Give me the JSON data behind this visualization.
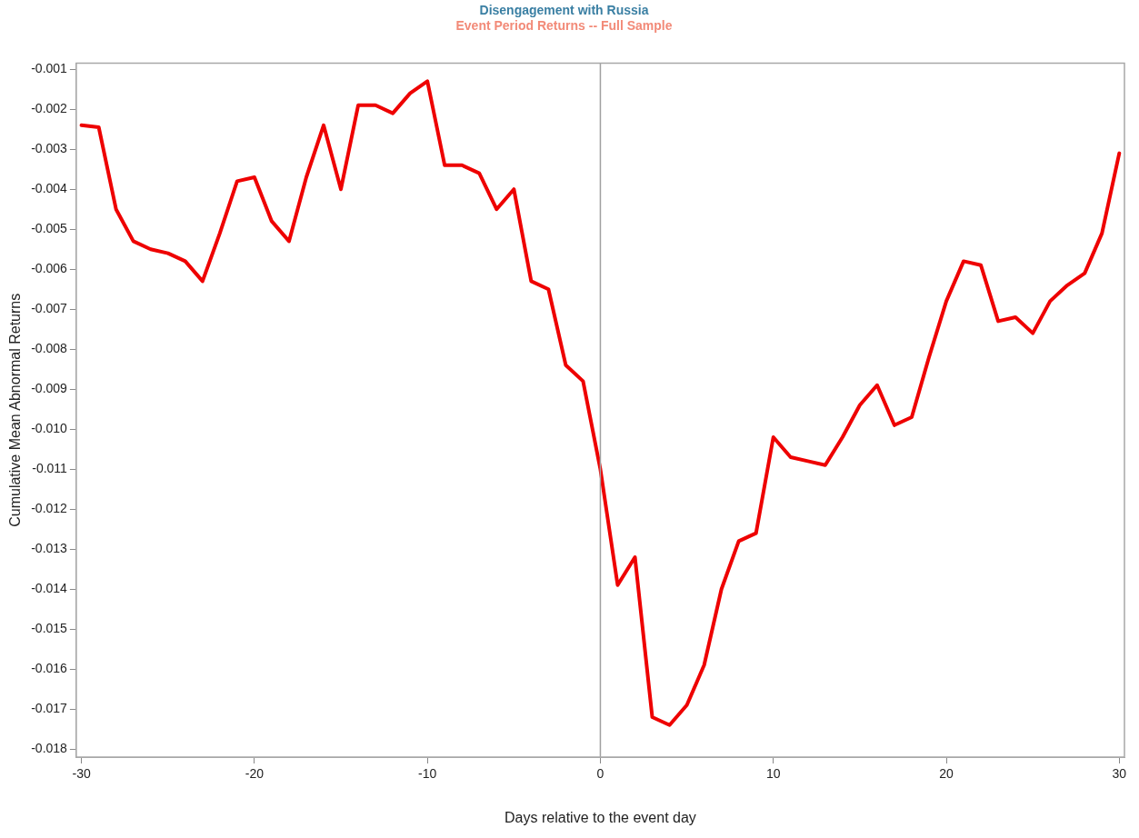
{
  "chart_data": {
    "type": "line",
    "title": "Disengagement with Russia",
    "subtitle": "Event Period Returns -- Full Sample",
    "xlabel": "Days relative to the event day",
    "ylabel": "Cumulative Mean Abnormal Returns",
    "x": [
      -30,
      -29,
      -28,
      -27,
      -26,
      -25,
      -24,
      -23,
      -22,
      -21,
      -20,
      -19,
      -18,
      -17,
      -16,
      -15,
      -14,
      -13,
      -12,
      -11,
      -10,
      -9,
      -8,
      -7,
      -6,
      -5,
      -4,
      -3,
      -2,
      -1,
      0,
      1,
      2,
      3,
      4,
      5,
      6,
      7,
      8,
      9,
      10,
      11,
      12,
      13,
      14,
      15,
      16,
      17,
      18,
      19,
      20,
      21,
      22,
      23,
      24,
      25,
      26,
      27,
      28,
      29,
      30
    ],
    "series": [
      {
        "color": "#ee0000",
        "values": [
          -0.0024,
          -0.00245,
          -0.0045,
          -0.0053,
          -0.0055,
          -0.0056,
          -0.0058,
          -0.0063,
          -0.0051,
          -0.0038,
          -0.0037,
          -0.0048,
          -0.0053,
          -0.0037,
          -0.0024,
          -0.004,
          -0.0019,
          -0.0019,
          -0.0021,
          -0.0016,
          -0.0013,
          -0.0034,
          -0.0034,
          -0.0036,
          -0.0045,
          -0.004,
          -0.0063,
          -0.0065,
          -0.0084,
          -0.0088,
          -0.011,
          -0.0139,
          -0.0132,
          -0.0172,
          -0.0174,
          -0.0169,
          -0.0159,
          -0.014,
          -0.0128,
          -0.0126,
          -0.0102,
          -0.0107,
          -0.0108,
          -0.0109,
          -0.0102,
          -0.0094,
          -0.0089,
          -0.0099,
          -0.0097,
          -0.0082,
          -0.0068,
          -0.0058,
          -0.0059,
          -0.0073,
          -0.0072,
          -0.0076,
          -0.0068,
          -0.0064,
          -0.0061,
          -0.0051,
          -0.0031
        ]
      }
    ],
    "xlim": [
      -30.3,
      30.3
    ],
    "xticks": [
      -30,
      -20,
      -10,
      0,
      10,
      20,
      30
    ],
    "ylim": [
      -0.0182,
      -0.00085
    ],
    "yticks": [
      -0.018,
      -0.017,
      -0.016,
      -0.015,
      -0.014,
      -0.013,
      -0.012,
      -0.011,
      {
        "value": -0.01,
        "label": "-0.010"
      },
      -0.009,
      -0.008,
      -0.007,
      -0.006,
      -0.005,
      -0.004,
      -0.003,
      -0.002,
      -0.001
    ],
    "ref_lines": [
      {
        "axis": "x",
        "value": 0,
        "color": "#a0a0a0"
      }
    ],
    "grid": false,
    "legend": false,
    "marker": "none",
    "line_style": "solid"
  }
}
